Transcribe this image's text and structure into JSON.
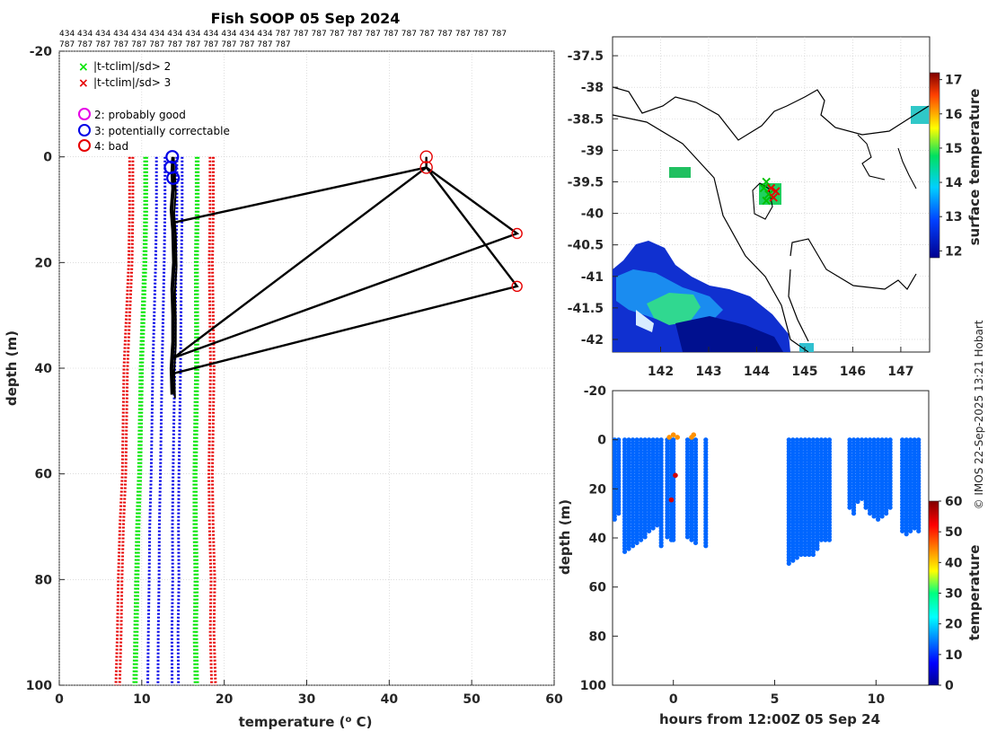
{
  "title": "Fish SOOP 05 Sep 2024",
  "id_row1": "434 434 434 434 434 434 434 434 434 434 434 434 787 787 787 787 787 787 787 787 787 787 787 787 787",
  "id_row2": "787 787 787 787 787 787 787 787 787 787 787 787 787",
  "copyright": "© IMOS 22-Sep-2025 13:21 Hobart",
  "legend": {
    "flag2": "|t-tclim|/sd> 2",
    "flag3": "|t-tclim|/sd> 3",
    "qc2": "2: probably good",
    "qc3": "3: potentially correctable",
    "qc4": "4: bad"
  },
  "colors": {
    "green": "#00e600",
    "red": "#e60000",
    "blue": "#0000e6",
    "magenta": "#e600e6",
    "axis": "#262626"
  },
  "chart_data": [
    {
      "type": "line",
      "name": "profile",
      "xlabel": "temperature (o C)",
      "ylabel": "depth (m)",
      "xlim": [
        0,
        60
      ],
      "ylim": [
        -20,
        100
      ],
      "xticks": [
        0,
        10,
        20,
        30,
        40,
        50,
        60
      ],
      "yticks": [
        -20,
        0,
        20,
        40,
        60,
        80,
        100
      ],
      "climatology": {
        "depth": [
          0,
          10,
          20,
          30,
          40,
          50,
          60,
          70,
          80,
          90,
          100
        ],
        "clim": [
          13.6,
          13.6,
          13.5,
          13.4,
          13.3,
          13.2,
          13.1,
          13.0,
          13.0,
          12.9,
          12.9
        ],
        "sd": [
          1.3,
          1.3,
          1.3,
          1.35,
          1.4,
          1.4,
          1.4,
          1.45,
          1.5,
          1.5,
          1.55
        ]
      },
      "profile": {
        "temp": [
          13.8,
          13.7,
          13.8,
          13.6,
          13.8,
          13.9,
          13.7,
          13.8,
          13.8,
          13.6,
          13.7
        ],
        "depth": [
          0,
          3,
          6,
          10,
          14,
          20,
          25,
          30,
          35,
          40,
          45
        ]
      },
      "spike_line": {
        "temp": [
          13.7,
          44.5,
          55.5,
          13.9,
          44.5,
          55.5,
          13.8
        ],
        "depth": [
          12.5,
          2,
          14.5,
          38,
          2,
          24.5,
          41
        ]
      },
      "bad_points": [
        {
          "temp": 44.5,
          "depth": 0
        },
        {
          "temp": 44.5,
          "depth": 2
        },
        {
          "temp": 55.5,
          "depth": 14.5
        },
        {
          "temp": 55.5,
          "depth": 24.5
        }
      ],
      "correctable_points": [
        {
          "temp": 13.7,
          "depth": 0
        },
        {
          "temp": 13.5,
          "depth": 2
        },
        {
          "temp": 13.8,
          "depth": 4
        }
      ]
    },
    {
      "type": "heatmap",
      "name": "map",
      "xlim": [
        141,
        147.6
      ],
      "ylim": [
        -42.2,
        -37.2
      ],
      "xticks": [
        142,
        143,
        144,
        145,
        146,
        147
      ],
      "yticks": [
        -37.5,
        -38,
        -38.5,
        -39,
        -39.5,
        -40,
        -40.5,
        -41,
        -41.5,
        -42
      ],
      "colorbar": {
        "label": "surface temperature",
        "min": 11.8,
        "max": 17.2,
        "ticks": [
          12,
          13,
          14,
          15,
          16,
          17
        ]
      },
      "track": [
        {
          "lon": 144.2,
          "lat": -39.5
        },
        {
          "lon": 144.3,
          "lat": -39.6
        },
        {
          "lon": 144.25,
          "lat": -39.7
        },
        {
          "lon": 144.35,
          "lat": -39.75
        },
        {
          "lon": 144.2,
          "lat": -39.8
        },
        {
          "lon": 144.4,
          "lat": -39.65
        },
        {
          "lon": 144.15,
          "lat": -39.6
        }
      ]
    },
    {
      "type": "scatter",
      "name": "timeseries",
      "xlabel": "hours from 12:00Z 05 Sep 24",
      "ylabel": "depth (m)",
      "xlim": [
        -3,
        12.6
      ],
      "ylim": [
        -20,
        100
      ],
      "xticks": [
        0,
        5,
        10
      ],
      "yticks": [
        -20,
        0,
        20,
        40,
        60,
        80,
        100
      ],
      "colorbar": {
        "label": "temperature",
        "min": 0,
        "max": 60,
        "ticks": [
          0,
          10,
          20,
          30,
          40,
          50,
          60
        ]
      },
      "casts": [
        {
          "t": -2.9,
          "maxd": 33,
          "temp": 13.5
        },
        {
          "t": -2.7,
          "maxd": 30,
          "temp": 13.5
        },
        {
          "t": -2.4,
          "maxd": 46,
          "temp": 13.5
        },
        {
          "t": -2.2,
          "maxd": 45,
          "temp": 13.5
        },
        {
          "t": -2.0,
          "maxd": 44,
          "temp": 13.5
        },
        {
          "t": -1.8,
          "maxd": 43,
          "temp": 13.5
        },
        {
          "t": -1.6,
          "maxd": 41,
          "temp": 13.5
        },
        {
          "t": -1.4,
          "maxd": 40,
          "temp": 13.5
        },
        {
          "t": -1.2,
          "maxd": 38,
          "temp": 13.5
        },
        {
          "t": -1.0,
          "maxd": 36,
          "temp": 13.5
        },
        {
          "t": -0.8,
          "maxd": 35,
          "temp": 13.5
        },
        {
          "t": -0.6,
          "maxd": 44,
          "temp": 13.5
        },
        {
          "t": -0.3,
          "maxd": 40,
          "temp": 13.5
        },
        {
          "t": -0.1,
          "maxd": 42,
          "temp": 13.5
        },
        {
          "t": 0.0,
          "maxd": 41,
          "temp": 13.5
        },
        {
          "t": 0.7,
          "maxd": 40,
          "temp": 13.5
        },
        {
          "t": 0.9,
          "maxd": 42,
          "temp": 13.5
        },
        {
          "t": 1.1,
          "maxd": 43,
          "temp": 13.5
        },
        {
          "t": 1.6,
          "maxd": 44,
          "temp": 13.5
        },
        {
          "t": 5.7,
          "maxd": 51,
          "temp": 13.5
        },
        {
          "t": 5.9,
          "maxd": 50,
          "temp": 13.5
        },
        {
          "t": 6.1,
          "maxd": 49,
          "temp": 13.5
        },
        {
          "t": 6.3,
          "maxd": 48,
          "temp": 13.5
        },
        {
          "t": 6.5,
          "maxd": 48,
          "temp": 13.5
        },
        {
          "t": 6.7,
          "maxd": 47,
          "temp": 13.5
        },
        {
          "t": 6.9,
          "maxd": 47,
          "temp": 13.5
        },
        {
          "t": 7.1,
          "maxd": 45,
          "temp": 13.5
        },
        {
          "t": 7.3,
          "maxd": 42,
          "temp": 13.5
        },
        {
          "t": 7.5,
          "maxd": 42,
          "temp": 13.5
        },
        {
          "t": 7.7,
          "maxd": 42,
          "temp": 13.5
        },
        {
          "t": 8.7,
          "maxd": 28,
          "temp": 13.5
        },
        {
          "t": 8.9,
          "maxd": 30,
          "temp": 13.5
        },
        {
          "t": 9.1,
          "maxd": 26,
          "temp": 13.5
        },
        {
          "t": 9.3,
          "maxd": 24,
          "temp": 13.5
        },
        {
          "t": 9.5,
          "maxd": 28,
          "temp": 13.5
        },
        {
          "t": 9.7,
          "maxd": 30,
          "temp": 13.5
        },
        {
          "t": 9.9,
          "maxd": 32,
          "temp": 13.5
        },
        {
          "t": 10.1,
          "maxd": 33,
          "temp": 13.5
        },
        {
          "t": 10.3,
          "maxd": 32,
          "temp": 13.5
        },
        {
          "t": 10.5,
          "maxd": 30,
          "temp": 13.5
        },
        {
          "t": 10.7,
          "maxd": 28,
          "temp": 13.5
        },
        {
          "t": 11.3,
          "maxd": 38,
          "temp": 13.5
        },
        {
          "t": 11.5,
          "maxd": 39,
          "temp": 13.5
        },
        {
          "t": 11.7,
          "maxd": 38,
          "temp": 13.5
        },
        {
          "t": 11.9,
          "maxd": 37,
          "temp": 13.5
        },
        {
          "t": 12.1,
          "maxd": 38,
          "temp": 13.5
        }
      ],
      "hot_points": [
        {
          "t": -0.2,
          "depth": -1,
          "temp": 44
        },
        {
          "t": 0.0,
          "depth": -2,
          "temp": 44
        },
        {
          "t": 0.2,
          "depth": -1,
          "temp": 44
        },
        {
          "t": 0.1,
          "depth": 14.5,
          "temp": 55
        },
        {
          "t": -0.1,
          "depth": 24.5,
          "temp": 55
        },
        {
          "t": 0.9,
          "depth": -1,
          "temp": 44
        },
        {
          "t": 1.0,
          "depth": -2,
          "temp": 44
        }
      ]
    }
  ]
}
